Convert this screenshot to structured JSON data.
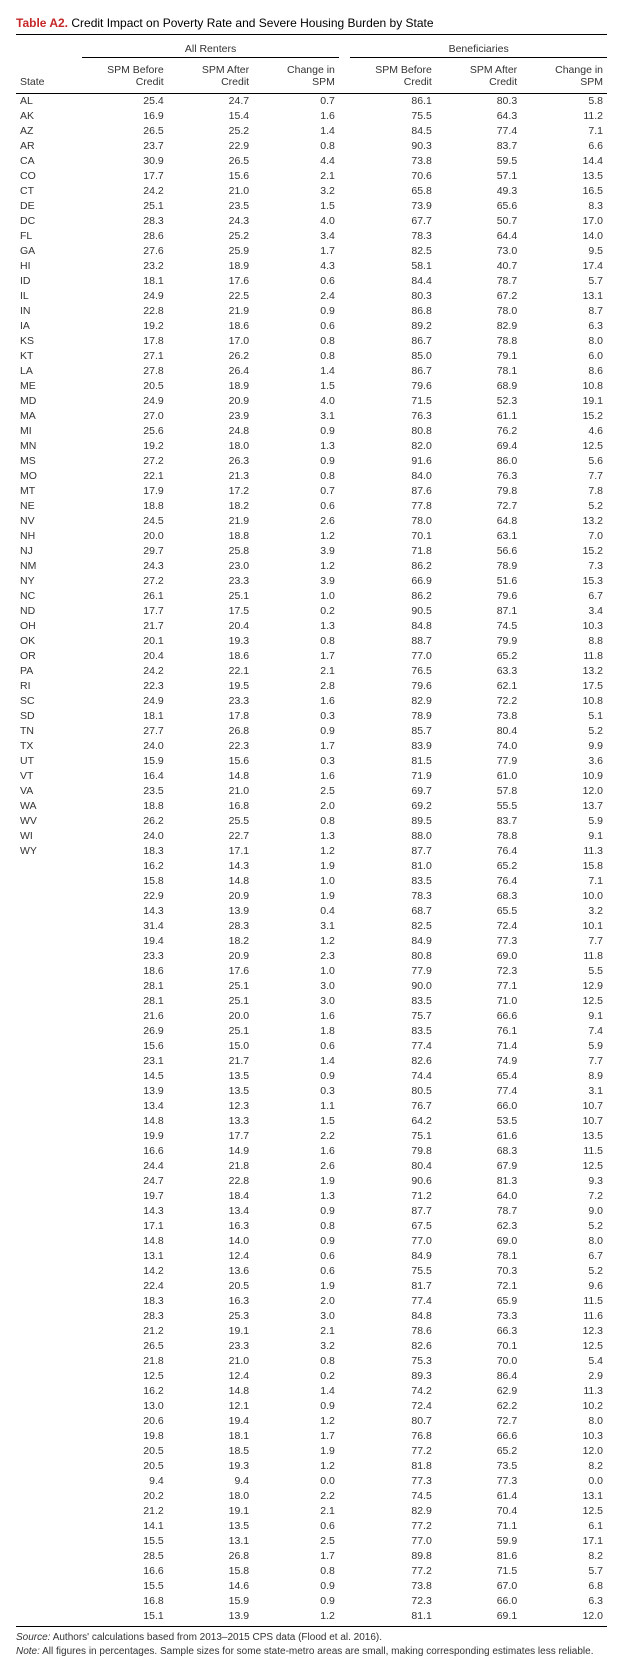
{
  "title_label": "Table A2.",
  "title_text": "Credit Impact on Poverty Rate and Severe Housing Burden by State",
  "columns": {
    "state": "State",
    "group1": "All Renters",
    "group2": "Beneficiaries",
    "c1": "SPM Before Credit",
    "c2": "SPM After Credit",
    "c3": "Change in SPM",
    "c4": "SPM Before Credit",
    "c5": "SPM After Credit",
    "c6": "Change in SPM"
  },
  "rows": [
    {
      "s": "AL",
      "a": 25.4,
      "b": 24.7,
      "c": 0.7,
      "d": 86.1,
      "e": 80.3,
      "f": 5.8
    },
    {
      "s": "AK",
      "a": 16.9,
      "b": 15.4,
      "c": 1.6,
      "d": 75.5,
      "e": 64.3,
      "f": 11.2
    },
    {
      "s": "AZ",
      "a": 26.5,
      "b": 25.2,
      "c": 1.4,
      "d": 84.5,
      "e": 77.4,
      "f": 7.1
    },
    {
      "s": "AR",
      "a": 23.7,
      "b": 22.9,
      "c": 0.8,
      "d": 90.3,
      "e": 83.7,
      "f": 6.6
    },
    {
      "s": "CA",
      "a": 30.9,
      "b": 26.5,
      "c": 4.4,
      "d": 73.8,
      "e": 59.5,
      "f": 14.4
    },
    {
      "s": "CO",
      "a": 17.7,
      "b": 15.6,
      "c": 2.1,
      "d": 70.6,
      "e": 57.1,
      "f": 13.5
    },
    {
      "s": "CT",
      "a": 24.2,
      "b": 21.0,
      "c": 3.2,
      "d": 65.8,
      "e": 49.3,
      "f": 16.5
    },
    {
      "s": "DE",
      "a": 25.1,
      "b": 23.5,
      "c": 1.5,
      "d": 73.9,
      "e": 65.6,
      "f": 8.3
    },
    {
      "s": "DC",
      "a": 28.3,
      "b": 24.3,
      "c": 4.0,
      "d": 67.7,
      "e": 50.7,
      "f": 17.0
    },
    {
      "s": "FL",
      "a": 28.6,
      "b": 25.2,
      "c": 3.4,
      "d": 78.3,
      "e": 64.4,
      "f": 14.0
    },
    {
      "s": "GA",
      "a": 27.6,
      "b": 25.9,
      "c": 1.7,
      "d": 82.5,
      "e": 73.0,
      "f": 9.5
    },
    {
      "s": "HI",
      "a": 23.2,
      "b": 18.9,
      "c": 4.3,
      "d": 58.1,
      "e": 40.7,
      "f": 17.4
    },
    {
      "s": "ID",
      "a": 18.1,
      "b": 17.6,
      "c": 0.6,
      "d": 84.4,
      "e": 78.7,
      "f": 5.7
    },
    {
      "s": "IL",
      "a": 24.9,
      "b": 22.5,
      "c": 2.4,
      "d": 80.3,
      "e": 67.2,
      "f": 13.1
    },
    {
      "s": "IN",
      "a": 22.8,
      "b": 21.9,
      "c": 0.9,
      "d": 86.8,
      "e": 78.0,
      "f": 8.7
    },
    {
      "s": "IA",
      "a": 19.2,
      "b": 18.6,
      "c": 0.6,
      "d": 89.2,
      "e": 82.9,
      "f": 6.3
    },
    {
      "s": "KS",
      "a": 17.8,
      "b": 17.0,
      "c": 0.8,
      "d": 86.7,
      "e": 78.8,
      "f": 8.0
    },
    {
      "s": "KT",
      "a": 27.1,
      "b": 26.2,
      "c": 0.8,
      "d": 85.0,
      "e": 79.1,
      "f": 6.0
    },
    {
      "s": "LA",
      "a": 27.8,
      "b": 26.4,
      "c": 1.4,
      "d": 86.7,
      "e": 78.1,
      "f": 8.6
    },
    {
      "s": "ME",
      "a": 20.5,
      "b": 18.9,
      "c": 1.5,
      "d": 79.6,
      "e": 68.9,
      "f": 10.8
    },
    {
      "s": "MD",
      "a": 24.9,
      "b": 20.9,
      "c": 4.0,
      "d": 71.5,
      "e": 52.3,
      "f": 19.1
    },
    {
      "s": "MA",
      "a": 27.0,
      "b": 23.9,
      "c": 3.1,
      "d": 76.3,
      "e": 61.1,
      "f": 15.2
    },
    {
      "s": "MI",
      "a": 25.6,
      "b": 24.8,
      "c": 0.9,
      "d": 80.8,
      "e": 76.2,
      "f": 4.6
    },
    {
      "s": "MN",
      "a": 19.2,
      "b": 18.0,
      "c": 1.3,
      "d": 82.0,
      "e": 69.4,
      "f": 12.5
    },
    {
      "s": "MS",
      "a": 27.2,
      "b": 26.3,
      "c": 0.9,
      "d": 91.6,
      "e": 86.0,
      "f": 5.6
    },
    {
      "s": "MO",
      "a": 22.1,
      "b": 21.3,
      "c": 0.8,
      "d": 84.0,
      "e": 76.3,
      "f": 7.7
    },
    {
      "s": "MT",
      "a": 17.9,
      "b": 17.2,
      "c": 0.7,
      "d": 87.6,
      "e": 79.8,
      "f": 7.8
    },
    {
      "s": "NE",
      "a": 18.8,
      "b": 18.2,
      "c": 0.6,
      "d": 77.8,
      "e": 72.7,
      "f": 5.2
    },
    {
      "s": "NV",
      "a": 24.5,
      "b": 21.9,
      "c": 2.6,
      "d": 78.0,
      "e": 64.8,
      "f": 13.2
    },
    {
      "s": "NH",
      "a": 20.0,
      "b": 18.8,
      "c": 1.2,
      "d": 70.1,
      "e": 63.1,
      "f": 7.0
    },
    {
      "s": "NJ",
      "a": 29.7,
      "b": 25.8,
      "c": 3.9,
      "d": 71.8,
      "e": 56.6,
      "f": 15.2
    },
    {
      "s": "NM",
      "a": 24.3,
      "b": 23.0,
      "c": 1.2,
      "d": 86.2,
      "e": 78.9,
      "f": 7.3
    },
    {
      "s": "NY",
      "a": 27.2,
      "b": 23.3,
      "c": 3.9,
      "d": 66.9,
      "e": 51.6,
      "f": 15.3
    },
    {
      "s": "NC",
      "a": 26.1,
      "b": 25.1,
      "c": 1.0,
      "d": 86.2,
      "e": 79.6,
      "f": 6.7
    },
    {
      "s": "ND",
      "a": 17.7,
      "b": 17.5,
      "c": 0.2,
      "d": 90.5,
      "e": 87.1,
      "f": 3.4
    },
    {
      "s": "OH",
      "a": 21.7,
      "b": 20.4,
      "c": 1.3,
      "d": 84.8,
      "e": 74.5,
      "f": 10.3
    },
    {
      "s": "OK",
      "a": 20.1,
      "b": 19.3,
      "c": 0.8,
      "d": 88.7,
      "e": 79.9,
      "f": 8.8
    },
    {
      "s": "OR",
      "a": 20.4,
      "b": 18.6,
      "c": 1.7,
      "d": 77.0,
      "e": 65.2,
      "f": 11.8
    },
    {
      "s": "PA",
      "a": 24.2,
      "b": 22.1,
      "c": 2.1,
      "d": 76.5,
      "e": 63.3,
      "f": 13.2
    },
    {
      "s": "RI",
      "a": 22.3,
      "b": 19.5,
      "c": 2.8,
      "d": 79.6,
      "e": 62.1,
      "f": 17.5
    },
    {
      "s": "SC",
      "a": 24.9,
      "b": 23.3,
      "c": 1.6,
      "d": 82.9,
      "e": 72.2,
      "f": 10.8
    },
    {
      "s": "SD",
      "a": 18.1,
      "b": 17.8,
      "c": 0.3,
      "d": 78.9,
      "e": 73.8,
      "f": 5.1
    },
    {
      "s": "TN",
      "a": 27.7,
      "b": 26.8,
      "c": 0.9,
      "d": 85.7,
      "e": 80.4,
      "f": 5.2
    },
    {
      "s": "TX",
      "a": 24.0,
      "b": 22.3,
      "c": 1.7,
      "d": 83.9,
      "e": 74.0,
      "f": 9.9
    },
    {
      "s": "UT",
      "a": 15.9,
      "b": 15.6,
      "c": 0.3,
      "d": 81.5,
      "e": 77.9,
      "f": 3.6
    },
    {
      "s": "VT",
      "a": 16.4,
      "b": 14.8,
      "c": 1.6,
      "d": 71.9,
      "e": 61.0,
      "f": 10.9
    },
    {
      "s": "VA",
      "a": 23.5,
      "b": 21.0,
      "c": 2.5,
      "d": 69.7,
      "e": 57.8,
      "f": 12.0
    },
    {
      "s": "WA",
      "a": 18.8,
      "b": 16.8,
      "c": 2.0,
      "d": 69.2,
      "e": 55.5,
      "f": 13.7
    },
    {
      "s": "WV",
      "a": 26.2,
      "b": 25.5,
      "c": 0.8,
      "d": 89.5,
      "e": 83.7,
      "f": 5.9
    },
    {
      "s": "WI",
      "a": 24.0,
      "b": 22.7,
      "c": 1.3,
      "d": 88.0,
      "e": 78.8,
      "f": 9.1
    },
    {
      "s": "WY",
      "a": 18.3,
      "b": 17.1,
      "c": 1.2,
      "d": 87.7,
      "e": 76.4,
      "f": 11.3
    },
    {
      "s": "",
      "a": 16.2,
      "b": 14.3,
      "c": 1.9,
      "d": 81.0,
      "e": 65.2,
      "f": 15.8
    },
    {
      "s": "",
      "a": 15.8,
      "b": 14.8,
      "c": 1.0,
      "d": 83.5,
      "e": 76.4,
      "f": 7.1
    },
    {
      "s": "",
      "a": 22.9,
      "b": 20.9,
      "c": 1.9,
      "d": 78.3,
      "e": 68.3,
      "f": 10.0
    },
    {
      "s": "",
      "a": 14.3,
      "b": 13.9,
      "c": 0.4,
      "d": 68.7,
      "e": 65.5,
      "f": 3.2
    },
    {
      "s": "",
      "a": 31.4,
      "b": 28.3,
      "c": 3.1,
      "d": 82.5,
      "e": 72.4,
      "f": 10.1
    },
    {
      "s": "",
      "a": 19.4,
      "b": 18.2,
      "c": 1.2,
      "d": 84.9,
      "e": 77.3,
      "f": 7.7
    },
    {
      "s": "",
      "a": 23.3,
      "b": 20.9,
      "c": 2.3,
      "d": 80.8,
      "e": 69.0,
      "f": 11.8
    },
    {
      "s": "",
      "a": 18.6,
      "b": 17.6,
      "c": 1.0,
      "d": 77.9,
      "e": 72.3,
      "f": 5.5
    },
    {
      "s": "",
      "a": 28.1,
      "b": 25.1,
      "c": 3.0,
      "d": 90.0,
      "e": 77.1,
      "f": 12.9
    },
    {
      "s": "",
      "a": 28.1,
      "b": 25.1,
      "c": 3.0,
      "d": 83.5,
      "e": 71.0,
      "f": 12.5
    },
    {
      "s": "",
      "a": 21.6,
      "b": 20.0,
      "c": 1.6,
      "d": 75.7,
      "e": 66.6,
      "f": 9.1
    },
    {
      "s": "",
      "a": 26.9,
      "b": 25.1,
      "c": 1.8,
      "d": 83.5,
      "e": 76.1,
      "f": 7.4
    },
    {
      "s": "",
      "a": 15.6,
      "b": 15.0,
      "c": 0.6,
      "d": 77.4,
      "e": 71.4,
      "f": 5.9
    },
    {
      "s": "",
      "a": 23.1,
      "b": 21.7,
      "c": 1.4,
      "d": 82.6,
      "e": 74.9,
      "f": 7.7
    },
    {
      "s": "",
      "a": 14.5,
      "b": 13.5,
      "c": 0.9,
      "d": 74.4,
      "e": 65.4,
      "f": 8.9
    },
    {
      "s": "",
      "a": 13.9,
      "b": 13.5,
      "c": 0.3,
      "d": 80.5,
      "e": 77.4,
      "f": 3.1
    },
    {
      "s": "",
      "a": 13.4,
      "b": 12.3,
      "c": 1.1,
      "d": 76.7,
      "e": 66.0,
      "f": 10.7
    },
    {
      "s": "",
      "a": 14.8,
      "b": 13.3,
      "c": 1.5,
      "d": 64.2,
      "e": 53.5,
      "f": 10.7
    },
    {
      "s": "",
      "a": 19.9,
      "b": 17.7,
      "c": 2.2,
      "d": 75.1,
      "e": 61.6,
      "f": 13.5
    },
    {
      "s": "",
      "a": 16.6,
      "b": 14.9,
      "c": 1.6,
      "d": 79.8,
      "e": 68.3,
      "f": 11.5
    },
    {
      "s": "",
      "a": 24.4,
      "b": 21.8,
      "c": 2.6,
      "d": 80.4,
      "e": 67.9,
      "f": 12.5
    },
    {
      "s": "",
      "a": 24.7,
      "b": 22.8,
      "c": 1.9,
      "d": 90.6,
      "e": 81.3,
      "f": 9.3
    },
    {
      "s": "",
      "a": 19.7,
      "b": 18.4,
      "c": 1.3,
      "d": 71.2,
      "e": 64.0,
      "f": 7.2
    },
    {
      "s": "",
      "a": 14.3,
      "b": 13.4,
      "c": 0.9,
      "d": 87.7,
      "e": 78.7,
      "f": 9.0
    },
    {
      "s": "",
      "a": 17.1,
      "b": 16.3,
      "c": 0.8,
      "d": 67.5,
      "e": 62.3,
      "f": 5.2
    },
    {
      "s": "",
      "a": 14.8,
      "b": 14.0,
      "c": 0.9,
      "d": 77.0,
      "e": 69.0,
      "f": 8.0
    },
    {
      "s": "",
      "a": 13.1,
      "b": 12.4,
      "c": 0.6,
      "d": 84.9,
      "e": 78.1,
      "f": 6.7
    },
    {
      "s": "",
      "a": 14.2,
      "b": 13.6,
      "c": 0.6,
      "d": 75.5,
      "e": 70.3,
      "f": 5.2
    },
    {
      "s": "",
      "a": 22.4,
      "b": 20.5,
      "c": 1.9,
      "d": 81.7,
      "e": 72.1,
      "f": 9.6
    },
    {
      "s": "",
      "a": 18.3,
      "b": 16.3,
      "c": 2.0,
      "d": 77.4,
      "e": 65.9,
      "f": 11.5
    },
    {
      "s": "",
      "a": 28.3,
      "b": 25.3,
      "c": 3.0,
      "d": 84.8,
      "e": 73.3,
      "f": 11.6
    },
    {
      "s": "",
      "a": 21.2,
      "b": 19.1,
      "c": 2.1,
      "d": 78.6,
      "e": 66.3,
      "f": 12.3
    },
    {
      "s": "",
      "a": 26.5,
      "b": 23.3,
      "c": 3.2,
      "d": 82.6,
      "e": 70.1,
      "f": 12.5
    },
    {
      "s": "",
      "a": 21.8,
      "b": 21.0,
      "c": 0.8,
      "d": 75.3,
      "e": 70.0,
      "f": 5.4
    },
    {
      "s": "",
      "a": 12.5,
      "b": 12.4,
      "c": 0.2,
      "d": 89.3,
      "e": 86.4,
      "f": 2.9
    },
    {
      "s": "",
      "a": 16.2,
      "b": 14.8,
      "c": 1.4,
      "d": 74.2,
      "e": 62.9,
      "f": 11.3
    },
    {
      "s": "",
      "a": 13.0,
      "b": 12.1,
      "c": 0.9,
      "d": 72.4,
      "e": 62.2,
      "f": 10.2
    },
    {
      "s": "",
      "a": 20.6,
      "b": 19.4,
      "c": 1.2,
      "d": 80.7,
      "e": 72.7,
      "f": 8.0
    },
    {
      "s": "",
      "a": 19.8,
      "b": 18.1,
      "c": 1.7,
      "d": 76.8,
      "e": 66.6,
      "f": 10.3
    },
    {
      "s": "",
      "a": 20.5,
      "b": 18.5,
      "c": 1.9,
      "d": 77.2,
      "e": 65.2,
      "f": 12.0
    },
    {
      "s": "",
      "a": 20.5,
      "b": 19.3,
      "c": 1.2,
      "d": 81.8,
      "e": 73.5,
      "f": 8.2
    },
    {
      "s": "",
      "a": 9.4,
      "b": 9.4,
      "c": 0.0,
      "d": 77.3,
      "e": 77.3,
      "f": 0.0
    },
    {
      "s": "",
      "a": 20.2,
      "b": 18.0,
      "c": 2.2,
      "d": 74.5,
      "e": 61.4,
      "f": 13.1
    },
    {
      "s": "",
      "a": 21.2,
      "b": 19.1,
      "c": 2.1,
      "d": 82.9,
      "e": 70.4,
      "f": 12.5
    },
    {
      "s": "",
      "a": 14.1,
      "b": 13.5,
      "c": 0.6,
      "d": 77.2,
      "e": 71.1,
      "f": 6.1
    },
    {
      "s": "",
      "a": 15.5,
      "b": 13.1,
      "c": 2.5,
      "d": 77.0,
      "e": 59.9,
      "f": 17.1
    },
    {
      "s": "",
      "a": 28.5,
      "b": 26.8,
      "c": 1.7,
      "d": 89.8,
      "e": 81.6,
      "f": 8.2
    },
    {
      "s": "",
      "a": 16.6,
      "b": 15.8,
      "c": 0.8,
      "d": 77.2,
      "e": 71.5,
      "f": 5.7
    },
    {
      "s": "",
      "a": 15.5,
      "b": 14.6,
      "c": 0.9,
      "d": 73.8,
      "e": 67.0,
      "f": 6.8
    },
    {
      "s": "",
      "a": 16.8,
      "b": 15.9,
      "c": 0.9,
      "d": 72.3,
      "e": 66.0,
      "f": 6.3
    },
    {
      "s": "",
      "a": 15.1,
      "b": 13.9,
      "c": 1.2,
      "d": 81.1,
      "e": 69.1,
      "f": 12.0
    }
  ],
  "source_label": "Source:",
  "source_text": "Authors' calculations based from 2013–2015 CPS data (Flood et al. 2016).",
  "note_label": "Note:",
  "note_text": "All figures in percentages. Sample sizes for some state-metro areas are small, making corresponding estimates less reliable."
}
